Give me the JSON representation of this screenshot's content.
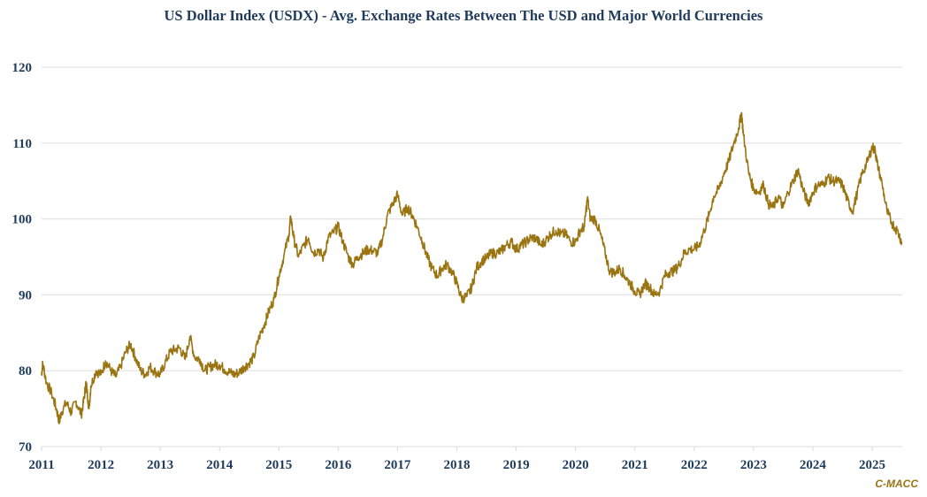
{
  "chart_data": {
    "type": "line",
    "title": "US Dollar Index (USDX) - Avg. Exchange Rates Between The USD and Major World Currencies",
    "xlabel": "",
    "ylabel": "",
    "ylim": [
      70,
      120
    ],
    "xlim": [
      2011.0,
      2025.5
    ],
    "yticks": [
      "70",
      "80",
      "90",
      "100",
      "110",
      "120"
    ],
    "xticks": [
      "2011",
      "2012",
      "2013",
      "2014",
      "2015",
      "2016",
      "2017",
      "2018",
      "2019",
      "2020",
      "2021",
      "2022",
      "2023",
      "2024",
      "2025"
    ],
    "grid": "horizontal",
    "legend": "none",
    "series": [
      {
        "name": "USDX",
        "color": "#9a7410",
        "x": [
          2011.0,
          2011.02,
          2011.08,
          2011.17,
          2011.25,
          2011.3,
          2011.33,
          2011.42,
          2011.5,
          2011.58,
          2011.67,
          2011.72,
          2011.75,
          2011.8,
          2011.83,
          2011.92,
          2012.0,
          2012.08,
          2012.17,
          2012.25,
          2012.33,
          2012.42,
          2012.5,
          2012.58,
          2012.67,
          2012.75,
          2012.83,
          2012.92,
          2013.0,
          2013.08,
          2013.17,
          2013.25,
          2013.33,
          2013.42,
          2013.5,
          2013.58,
          2013.67,
          2013.75,
          2013.83,
          2013.92,
          2014.0,
          2014.08,
          2014.17,
          2014.25,
          2014.33,
          2014.42,
          2014.5,
          2014.58,
          2014.67,
          2014.75,
          2014.83,
          2014.92,
          2015.0,
          2015.08,
          2015.17,
          2015.2,
          2015.25,
          2015.33,
          2015.42,
          2015.5,
          2015.58,
          2015.67,
          2015.75,
          2015.83,
          2015.92,
          2016.0,
          2016.08,
          2016.17,
          2016.25,
          2016.33,
          2016.42,
          2016.5,
          2016.58,
          2016.67,
          2016.75,
          2016.83,
          2016.92,
          2017.0,
          2017.08,
          2017.17,
          2017.25,
          2017.33,
          2017.42,
          2017.5,
          2017.58,
          2017.67,
          2017.75,
          2017.83,
          2017.92,
          2018.0,
          2018.08,
          2018.17,
          2018.25,
          2018.33,
          2018.42,
          2018.5,
          2018.58,
          2018.67,
          2018.75,
          2018.83,
          2018.92,
          2019.0,
          2019.08,
          2019.17,
          2019.25,
          2019.33,
          2019.42,
          2019.5,
          2019.58,
          2019.67,
          2019.75,
          2019.83,
          2019.92,
          2020.0,
          2020.08,
          2020.15,
          2020.2,
          2020.25,
          2020.33,
          2020.42,
          2020.5,
          2020.58,
          2020.67,
          2020.75,
          2020.83,
          2020.92,
          2021.0,
          2021.08,
          2021.17,
          2021.25,
          2021.33,
          2021.42,
          2021.5,
          2021.58,
          2021.67,
          2021.75,
          2021.83,
          2021.92,
          2022.0,
          2022.08,
          2022.17,
          2022.25,
          2022.33,
          2022.42,
          2022.5,
          2022.58,
          2022.67,
          2022.75,
          2022.8,
          2022.83,
          2022.92,
          2023.0,
          2023.08,
          2023.17,
          2023.25,
          2023.33,
          2023.42,
          2023.5,
          2023.58,
          2023.67,
          2023.75,
          2023.83,
          2023.92,
          2024.0,
          2024.08,
          2024.17,
          2024.25,
          2024.33,
          2024.42,
          2024.5,
          2024.58,
          2024.67,
          2024.75,
          2024.83,
          2024.92,
          2025.0,
          2025.05,
          2025.08,
          2025.17,
          2025.25,
          2025.33,
          2025.42,
          2025.5
        ],
        "values": [
          79.5,
          81.0,
          78.5,
          77.0,
          75.0,
          73.2,
          74.5,
          75.8,
          74.5,
          76.0,
          74.2,
          76.5,
          78.5,
          75.0,
          78.0,
          80.0,
          79.5,
          81.3,
          80.0,
          79.2,
          80.5,
          82.5,
          83.5,
          81.8,
          80.0,
          79.5,
          80.5,
          79.8,
          79.5,
          81.0,
          82.5,
          82.8,
          83.0,
          81.5,
          84.5,
          81.8,
          81.5,
          80.0,
          80.5,
          80.8,
          80.8,
          80.2,
          79.8,
          79.5,
          79.8,
          80.5,
          81.0,
          81.8,
          84.5,
          86.0,
          87.8,
          89.5,
          92.5,
          95.0,
          98.0,
          100.3,
          97.5,
          95.0,
          96.5,
          97.5,
          95.5,
          96.0,
          94.8,
          97.5,
          98.2,
          99.0,
          97.0,
          95.0,
          94.0,
          95.0,
          95.5,
          96.0,
          95.8,
          95.5,
          97.5,
          100.5,
          102.0,
          103.2,
          100.5,
          101.5,
          100.5,
          99.0,
          97.0,
          95.0,
          93.5,
          92.5,
          93.5,
          94.0,
          93.0,
          91.5,
          89.5,
          89.8,
          91.0,
          93.5,
          94.5,
          94.8,
          95.5,
          95.5,
          95.8,
          96.5,
          97.0,
          96.0,
          96.5,
          97.0,
          97.5,
          97.5,
          96.5,
          97.2,
          98.0,
          98.5,
          98.0,
          98.0,
          97.0,
          97.0,
          98.5,
          99.0,
          102.8,
          100.0,
          100.0,
          98.0,
          95.5,
          93.0,
          93.0,
          93.5,
          92.5,
          91.5,
          90.5,
          90.0,
          91.5,
          91.0,
          90.0,
          90.5,
          92.5,
          93.0,
          93.2,
          94.0,
          95.5,
          96.0,
          96.0,
          96.5,
          98.5,
          100.5,
          103.0,
          104.0,
          106.0,
          107.5,
          110.0,
          112.0,
          114.0,
          111.0,
          106.0,
          104.0,
          103.5,
          104.5,
          102.0,
          101.5,
          103.0,
          101.5,
          103.5,
          105.0,
          106.5,
          104.0,
          102.0,
          103.5,
          104.5,
          104.5,
          105.5,
          105.0,
          105.0,
          104.5,
          102.5,
          101.0,
          103.5,
          106.0,
          107.5,
          109.5,
          109.0,
          107.5,
          104.5,
          101.0,
          99.5,
          98.5,
          97.0
        ]
      }
    ]
  },
  "source_label": "C-MACC"
}
